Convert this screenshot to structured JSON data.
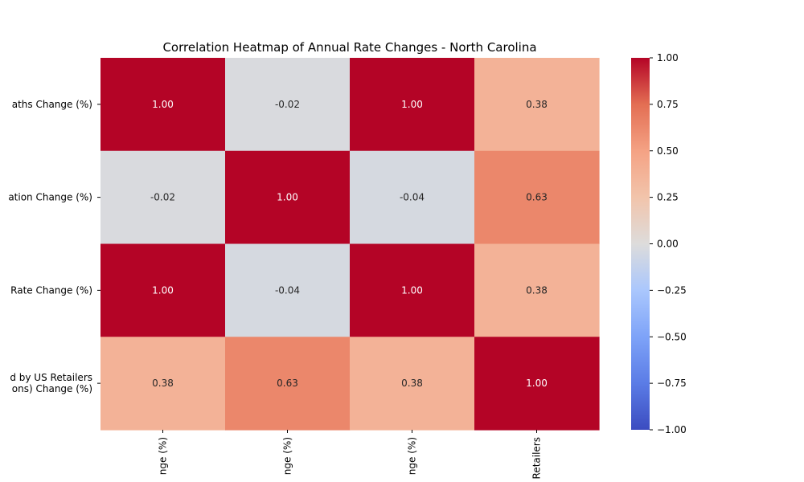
{
  "chart_data": {
    "type": "heatmap",
    "title": "Correlation Heatmap of Annual Rate Changes - North Carolina",
    "row_tick_labels": [
      [
        "aths Change (%)"
      ],
      [
        "ation Change (%)"
      ],
      [
        "Rate Change (%)"
      ],
      [
        "d by US Retailers",
        "ons) Change (%)"
      ]
    ],
    "column_tick_labels": [
      "nge (%)",
      "nge (%)",
      "nge (%)",
      "Retailers"
    ],
    "matrix": [
      [
        1.0,
        -0.02,
        1.0,
        0.38
      ],
      [
        -0.02,
        1.0,
        -0.04,
        0.63
      ],
      [
        1.0,
        -0.04,
        1.0,
        0.38
      ],
      [
        0.38,
        0.63,
        0.38,
        1.0
      ]
    ],
    "cell_labels": [
      [
        "1.00",
        "-0.02",
        "1.00",
        "0.38"
      ],
      [
        "-0.02",
        "1.00",
        "-0.04",
        "0.63"
      ],
      [
        "1.00",
        "-0.04",
        "1.00",
        "0.38"
      ],
      [
        "0.38",
        "0.63",
        "0.38",
        "1.00"
      ]
    ],
    "value_range": [
      -1.0,
      1.0
    ],
    "colorbar": {
      "ticks": [
        1.0,
        0.75,
        0.5,
        0.25,
        0.0,
        -0.25,
        -0.5,
        -0.75,
        -1.0
      ],
      "tick_labels": [
        "1.00",
        "0.75",
        "0.50",
        "0.25",
        "0.00",
        "−0.25",
        "−0.50",
        "−0.75",
        "−1.00"
      ],
      "placement": "right"
    },
    "colormap": {
      "name": "coolwarm",
      "stops": [
        {
          "value": -1.0,
          "color": "#3b4cc0"
        },
        {
          "value": -0.75,
          "color": "#5b7ce6"
        },
        {
          "value": -0.5,
          "color": "#7ea3f8"
        },
        {
          "value": -0.25,
          "color": "#aac7fd"
        },
        {
          "value": 0.0,
          "color": "#dddcdb"
        },
        {
          "value": 0.25,
          "color": "#f2c4ab"
        },
        {
          "value": 0.5,
          "color": "#f4a284"
        },
        {
          "value": 0.75,
          "color": "#e36e53"
        },
        {
          "value": 1.0,
          "color": "#b40426"
        }
      ]
    },
    "grid": false
  }
}
